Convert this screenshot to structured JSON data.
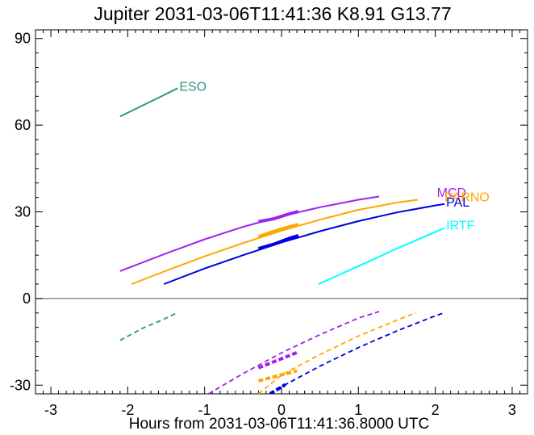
{
  "chart_data": {
    "type": "line",
    "title": "Jupiter 2031-03-06T11:41:36  K8.91  G13.77",
    "xlabel": "Hours from 2031-03-06T11:41:36.8000 UTC",
    "ylabel": "",
    "xlim": [
      -3.2,
      3.2
    ],
    "ylim": [
      -33,
      93
    ],
    "x_ticks": [
      -3,
      -2,
      -1,
      0,
      1,
      2,
      3
    ],
    "x_tick_labels": [
      "-3",
      "-2",
      "-1",
      "0",
      "1",
      "2",
      "3"
    ],
    "y_ticks": [
      -30,
      0,
      30,
      60,
      90
    ],
    "y_tick_labels": [
      "-30",
      "0",
      "30",
      "60",
      "90"
    ],
    "zero_line": 0,
    "grid": false,
    "series": [
      {
        "name": "ESO",
        "color": "#2a9a84",
        "x": [
          -2.1,
          -1.8,
          -1.6,
          -1.35
        ],
        "y": [
          63,
          66.9,
          69.5,
          72.8
        ],
        "highlight": [],
        "dashed_x": [
          -2.1,
          -1.8,
          -1.55,
          -1.35
        ],
        "dashed_y": [
          -14.5,
          -10.2,
          -7.4,
          -4.8
        ],
        "dashed_highlight": [],
        "label_x": -1.35,
        "label_y": 73
      },
      {
        "name": "MCD",
        "color": "#a020f0",
        "x": [
          -2.1,
          -1.5,
          -1.0,
          -0.5,
          0.0,
          0.5,
          1.0,
          1.27
        ],
        "y": [
          9.5,
          15.6,
          20.5,
          24.8,
          28.5,
          31.6,
          34.2,
          35.3
        ],
        "highlight": [
          [
            -0.3,
            26.6
          ],
          [
            -0.1,
            27.6
          ],
          [
            0.1,
            29.3
          ],
          [
            0.22,
            30.1
          ]
        ],
        "dashed_x": [
          -0.95,
          -0.5,
          0.0,
          0.5,
          1.0,
          1.27
        ],
        "dashed_y": [
          -33,
          -26.0,
          -18.8,
          -12.5,
          -6.8,
          -4.5
        ],
        "dashed_highlight": [
          [
            -0.3,
            -24.0
          ],
          [
            0.22,
            -18.5
          ]
        ],
        "label_x": 2.0,
        "label_y": 36.3
      },
      {
        "name": "PARNO",
        "color": "#ffa500",
        "x": [
          -1.95,
          -1.5,
          -1.0,
          -0.5,
          0.0,
          0.5,
          1.0,
          1.5,
          1.77
        ],
        "y": [
          5,
          9.6,
          14.6,
          19.2,
          23.5,
          27.3,
          30.7,
          33.2,
          34.2
        ],
        "highlight": [
          [
            -0.3,
            21.4
          ],
          [
            -0.1,
            23.2
          ],
          [
            0.1,
            24.8
          ],
          [
            0.22,
            25.6
          ]
        ],
        "dashed_x": [
          -0.3,
          0.0,
          0.5,
          1.0,
          1.5,
          1.75
        ],
        "dashed_y": [
          -33,
          -26.5,
          -19.4,
          -13.0,
          -7.5,
          -4.9
        ],
        "dashed_highlight": [
          [
            -0.3,
            -28.5
          ],
          [
            0.2,
            -25.0
          ]
        ],
        "label_x": 2.1,
        "label_y": 34.8
      },
      {
        "name": "PAL",
        "color": "#0000e0",
        "x": [
          -1.53,
          -1.0,
          -0.5,
          0.0,
          0.5,
          1.0,
          1.5,
          2.0,
          2.12
        ],
        "y": [
          5,
          10.4,
          15.0,
          19.4,
          23.3,
          26.8,
          29.8,
          32.2,
          32.7
        ],
        "highlight": [
          [
            -0.3,
            17.3
          ],
          [
            -0.1,
            18.8
          ],
          [
            0.1,
            20.8
          ],
          [
            0.22,
            21.8
          ]
        ],
        "dashed_x": [
          -0.15,
          0.0,
          0.5,
          1.0,
          1.5,
          2.0,
          2.12
        ],
        "dashed_y": [
          -33,
          -30.5,
          -23.4,
          -17.0,
          -11.2,
          -6.0,
          -4.9
        ],
        "dashed_highlight": [
          [
            -0.15,
            -33
          ],
          [
            0.05,
            -29.8
          ]
        ],
        "label_x": 2.12,
        "label_y": 33.0
      },
      {
        "name": "IRTF",
        "color": "#00ffff",
        "x": [
          0.48,
          1.0,
          1.5,
          2.0,
          2.12
        ],
        "y": [
          5,
          11.2,
          17.3,
          23.0,
          24.4
        ],
        "highlight": [],
        "dashed_x": [],
        "dashed_y": [],
        "dashed_highlight": [],
        "label_x": 2.12,
        "label_y": 25.0
      }
    ]
  }
}
